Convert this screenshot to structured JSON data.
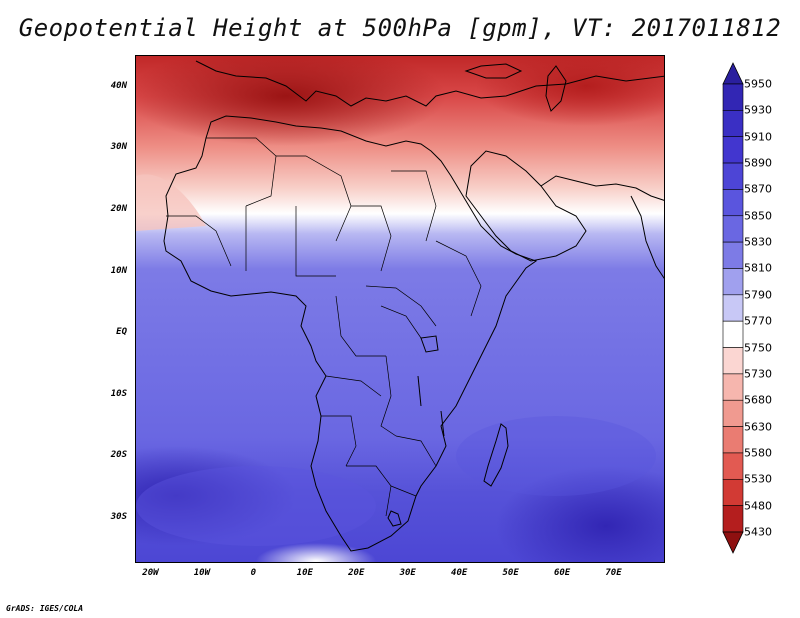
{
  "title": "Geopotential Height at 500hPa [gpm], VT: 2017011812",
  "footer": "GrADS: IGES/COLA",
  "lat_labels": [
    "40N",
    "30N",
    "20N",
    "10N",
    "EQ",
    "10S",
    "20S",
    "30S"
  ],
  "lat_values": [
    40,
    30,
    20,
    10,
    0,
    -10,
    -20,
    -30
  ],
  "lon_labels": [
    "20W",
    "10W",
    "0",
    "10E",
    "20E",
    "30E",
    "40E",
    "50E",
    "60E",
    "70E"
  ],
  "lon_values": [
    -20,
    -10,
    0,
    10,
    20,
    30,
    40,
    50,
    60,
    70
  ],
  "colorbar": {
    "labels": [
      "5950",
      "5930",
      "5910",
      "5890",
      "5870",
      "5850",
      "5830",
      "5810",
      "5790",
      "5770",
      "5750",
      "5730",
      "5680",
      "5630",
      "5580",
      "5530",
      "5480",
      "5430"
    ],
    "colors": [
      "#2a1f9e",
      "#3226b4",
      "#3a2fc4",
      "#4236cf",
      "#4d45d6",
      "#5a55de",
      "#6a67e2",
      "#7d7be6",
      "#a0a0ee",
      "#c8c8f6",
      "#ffffff",
      "#fbd6d2",
      "#f6b6ae",
      "#f09a90",
      "#ea7c72",
      "#e25a52",
      "#d23a34",
      "#b41e1e",
      "#8e1010"
    ]
  },
  "colors": {
    "land_line": "#000000",
    "ocean_base": "#6a67e2"
  }
}
